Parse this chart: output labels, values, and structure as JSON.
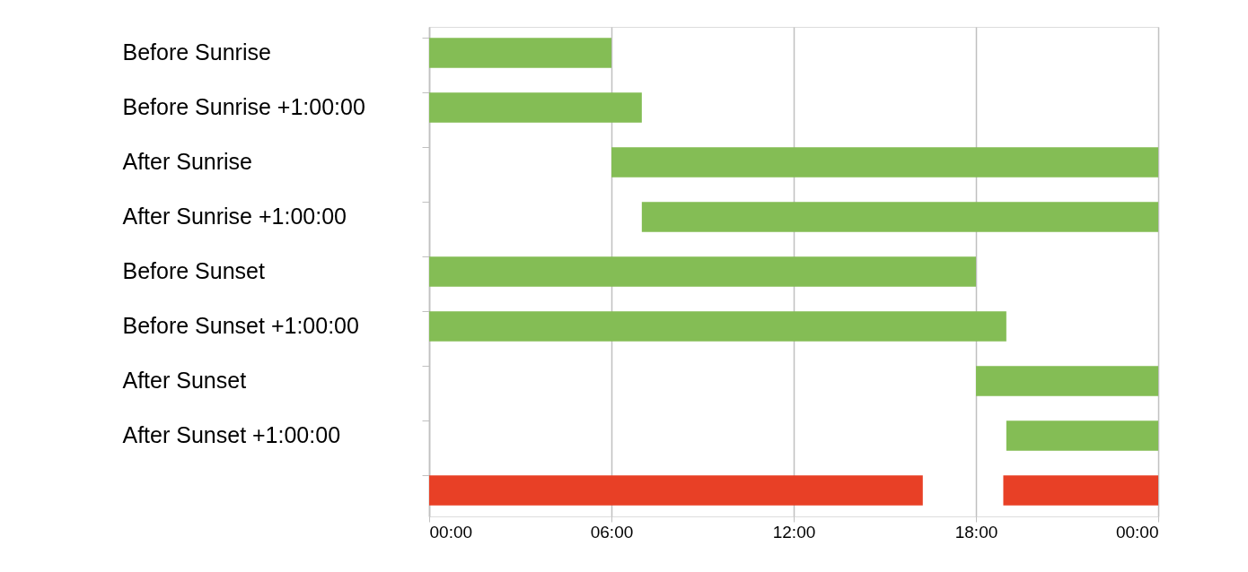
{
  "chart_data": {
    "type": "bar",
    "orientation": "horizontal",
    "categories": [
      "Before Sunrise",
      "Before Sunrise +1:00:00",
      "After Sunrise",
      "After Sunrise +1:00:00",
      "Before Sunset",
      "Before Sunset +1:00:00",
      "After Sunset",
      "After Sunset +1:00:00",
      null
    ],
    "series": [
      {
        "color": "#84bd55",
        "values": [
          6,
          7,
          18,
          17,
          18,
          19,
          6,
          5,
          null
        ],
        "base": [
          0,
          0,
          6,
          7,
          0,
          0,
          18,
          19,
          null
        ]
      },
      {
        "color": "#e84026",
        "values": [
          null,
          null,
          null,
          null,
          null,
          null,
          null,
          null,
          16.25
        ],
        "base": [
          null,
          null,
          null,
          null,
          null,
          null,
          null,
          null,
          0
        ]
      },
      {
        "color": "#e84026",
        "values": [
          null,
          null,
          null,
          null,
          null,
          null,
          null,
          null,
          5.1
        ],
        "base": [
          null,
          null,
          null,
          null,
          null,
          null,
          null,
          null,
          18.9
        ]
      }
    ],
    "xlim": [
      0,
      24
    ],
    "xticks": [
      {
        "value": 0,
        "label": "00:00"
      },
      {
        "value": 6,
        "label": "06:00"
      },
      {
        "value": 12,
        "label": "12:00"
      },
      {
        "value": 18,
        "label": "18:00"
      },
      {
        "value": 24,
        "label": "00:00"
      }
    ],
    "grid": "x",
    "legend": false
  }
}
